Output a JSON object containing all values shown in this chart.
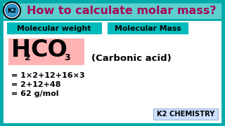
{
  "bg_outer": "#5ccfcf",
  "bg_inner": "#ffffff",
  "title_text": "How to calculate molar mass?",
  "title_color": "#aa0055",
  "title_fontsize": 11.5,
  "k2_bg": "#ffffff",
  "box1_text": "Molecular weight",
  "box2_text": "Molecular Mass",
  "box_bg": "#00bbbb",
  "box_text_color": "#000000",
  "formula_bg": "#ffb3b3",
  "carbonic_text": "(Carbonic acid)",
  "line1": "= 1×2+12+16×3",
  "line2": "= 2+12+48",
  "line3": "= 62 g/mol",
  "calc_color": "#000000",
  "calc_fontsize": 8.0,
  "k2chem_text": "K2 CHEMISTRY",
  "k2chem_bg": "#cce0ff",
  "border_color": "#00aaaa",
  "formula_color": "#000000",
  "carbonic_fontsize": 9.5
}
